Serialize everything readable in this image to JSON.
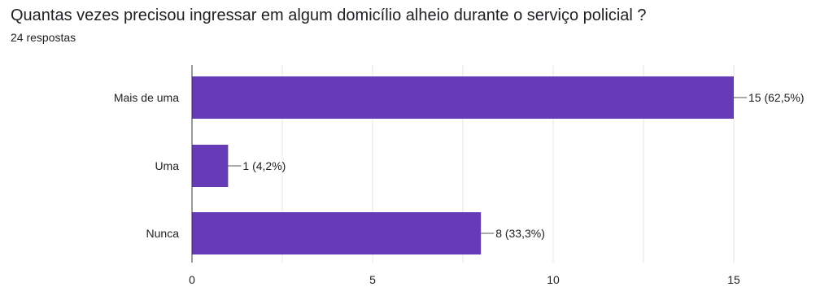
{
  "header": {
    "title": "Quantas vezes precisou ingressar em algum domicílio alheio durante o serviço policial ?",
    "subtitle": "24 respostas"
  },
  "chart_data": {
    "type": "bar",
    "orientation": "horizontal",
    "categories": [
      "Mais de uma",
      "Uma",
      "Nunca"
    ],
    "values": [
      15,
      1,
      8
    ],
    "value_labels": [
      "15 (62,5%)",
      "1 (4,2%)",
      "8 (33,3%)"
    ],
    "xticks": [
      0,
      5,
      10,
      15
    ],
    "tick_labels": [
      "0",
      "5",
      "10",
      "15"
    ],
    "xlim": [
      0,
      15
    ],
    "grid": true,
    "bar_color": "#673ab7"
  }
}
